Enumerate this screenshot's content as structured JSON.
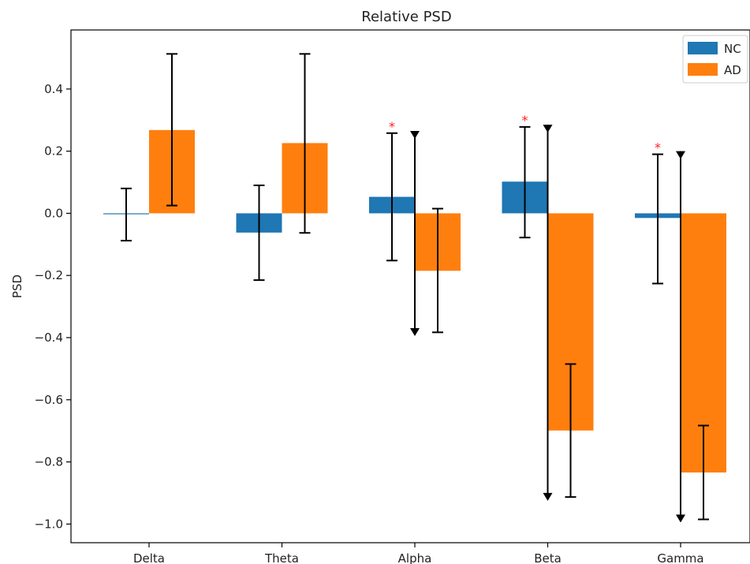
{
  "chart_data": {
    "type": "bar",
    "title": "Relative PSD",
    "xlabel": "",
    "ylabel": "PSD",
    "categories": [
      "Delta",
      "Theta",
      "Alpha",
      "Beta",
      "Gamma"
    ],
    "ylim": [
      -1.06,
      0.59
    ],
    "yticks": [
      -1.0,
      -0.8,
      -0.6,
      -0.4,
      -0.2,
      0.0,
      0.2,
      0.4
    ],
    "ytick_labels": [
      "−1.0",
      "−0.8",
      "−0.6",
      "−0.4",
      "−0.2",
      "0.0",
      "0.2",
      "0.4"
    ],
    "grid": false,
    "legend": {
      "position": "top-right"
    },
    "series": [
      {
        "name": "NC",
        "color": "#1f77b4",
        "values": [
          0.0,
          -0.062,
          0.053,
          0.102,
          -0.015
        ],
        "err_low": [
          -0.088,
          -0.215,
          -0.152,
          -0.078,
          -0.226
        ],
        "err_high": [
          0.08,
          0.09,
          0.258,
          0.278,
          0.19
        ]
      },
      {
        "name": "AD",
        "color": "#ff7f0e",
        "values": [
          0.268,
          0.226,
          -0.185,
          -0.699,
          -0.834
        ],
        "err_low": [
          0.025,
          -0.063,
          -0.383,
          -0.913,
          -0.985
        ],
        "err_high": [
          0.513,
          0.513,
          0.015,
          -0.485,
          -0.683
        ]
      }
    ],
    "significance": {
      "marker": "*",
      "color": "#ff2020",
      "categories": [
        "Alpha",
        "Beta",
        "Gamma"
      ]
    },
    "arrows": [
      {
        "category": "Alpha",
        "from": 0.265,
        "to": -0.395
      },
      {
        "category": "Beta",
        "from": 0.285,
        "to": -0.925
      },
      {
        "category": "Gamma",
        "from": 0.2,
        "to": -0.995
      }
    ]
  }
}
